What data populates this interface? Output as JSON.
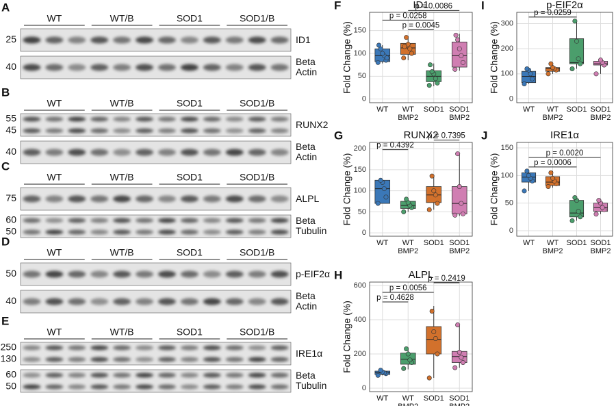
{
  "blots": [
    {
      "letter": "A",
      "groups": [
        "WT",
        "WT/B",
        "SOD1",
        "SOD1/B"
      ],
      "rows": [
        {
          "markers": [
            "25"
          ],
          "label": "ID1"
        },
        {
          "markers": [
            "40"
          ],
          "label": "Beta\nActin"
        }
      ]
    },
    {
      "letter": "B",
      "groups": [
        "WT",
        "WT/B",
        "SOD1",
        "SOD1/B"
      ],
      "rows": [
        {
          "markers": [
            "55",
            "45"
          ],
          "label": "RUNX2"
        },
        {
          "markers": [
            "40"
          ],
          "label": "Beta\nActin"
        }
      ]
    },
    {
      "letter": "C",
      "groups": [
        "WT",
        "WT/B",
        "SOD1",
        "SOD1/B"
      ],
      "rows": [
        {
          "markers": [
            "75"
          ],
          "label": "ALPL"
        },
        {
          "markers": [
            "60",
            "50"
          ],
          "label": "Beta\nTubulin"
        }
      ]
    },
    {
      "letter": "D",
      "groups": [
        "WT",
        "WT/B",
        "SOD1",
        "SOD1/B"
      ],
      "rows": [
        {
          "markers": [
            "50"
          ],
          "label": "p-EIF2α"
        },
        {
          "markers": [
            "40"
          ],
          "label": "Beta\nActin"
        }
      ]
    },
    {
      "letter": "E",
      "groups": [
        "WT",
        "WT/B",
        "SOD1",
        "SOD1/B"
      ],
      "rows": [
        {
          "markers": [
            "250",
            "130"
          ],
          "label": "IRE1α"
        },
        {
          "markers": [
            "60",
            "50"
          ],
          "label": "Beta\nTubulin"
        }
      ]
    }
  ],
  "chart_data": [
    {
      "type": "box",
      "panel": "F",
      "title": "ID1",
      "ylabel": "Fold Change (%)",
      "categories": [
        "WT",
        "WT\nBMP2",
        "SOD1",
        "SOD1\nBMP2"
      ],
      "ylim": [
        -8,
        190
      ],
      "yticks": [
        0,
        50,
        100,
        150
      ],
      "grid": true,
      "boxes": [
        {
          "color": "#3b78b8",
          "min": 78,
          "q1": 82,
          "median": 95,
          "q3": 110,
          "max": 118,
          "points": [
            80,
            85,
            95,
            100,
            110,
            118,
            90
          ]
        },
        {
          "color": "#d2712c",
          "min": 85,
          "q1": 98,
          "median": 112,
          "q3": 122,
          "max": 138,
          "points": [
            90,
            100,
            110,
            120,
            135,
            115
          ]
        },
        {
          "color": "#4b9e6c",
          "min": 28,
          "q1": 38,
          "median": 50,
          "q3": 62,
          "max": 78,
          "points": [
            30,
            35,
            45,
            55,
            60,
            75
          ]
        },
        {
          "color": "#d07eb2",
          "min": 62,
          "q1": 70,
          "median": 95,
          "q3": 125,
          "max": 143,
          "points": [
            65,
            80,
            95,
            110,
            130,
            140
          ]
        }
      ],
      "annotations": [
        {
          "label": "p = 0.0045",
          "from": 1,
          "to": 2
        },
        {
          "label": "p = 0.0258",
          "from": 0,
          "to": 2
        },
        {
          "label": "p = 0.0086",
          "from": 1,
          "to": 3
        }
      ]
    },
    {
      "type": "box",
      "panel": "G",
      "title": "RUNX2",
      "ylabel": "Fold Change (%)",
      "categories": [
        "WT",
        "WT\nBMP2",
        "SOD1",
        "SOD1\nBMP2"
      ],
      "ylim": [
        -8,
        215
      ],
      "yticks": [
        0,
        50,
        100,
        150,
        200
      ],
      "grid": true,
      "boxes": [
        {
          "color": "#3b78b8",
          "min": 70,
          "q1": 70,
          "median": 105,
          "q3": 125,
          "max": 125,
          "points": [
            70,
            85,
            105,
            120,
            125
          ]
        },
        {
          "color": "#4b9e6c",
          "min": 50,
          "q1": 58,
          "median": 65,
          "q3": 75,
          "max": 80,
          "points": [
            50,
            60,
            65,
            72,
            80
          ]
        },
        {
          "color": "#d2712c",
          "min": 55,
          "q1": 72,
          "median": 90,
          "q3": 110,
          "max": 137,
          "points": [
            55,
            70,
            90,
            100,
            135
          ]
        },
        {
          "color": "#d07eb2",
          "min": 40,
          "q1": 45,
          "median": 70,
          "q3": 110,
          "max": 188,
          "points": [
            42,
            45,
            70,
            110,
            188
          ]
        }
      ],
      "annotations": [
        {
          "label": "p = 0.4392",
          "from": 0,
          "to": 1
        },
        {
          "label": "p = 0.7395",
          "from": 2,
          "to": 3
        }
      ]
    },
    {
      "type": "box",
      "panel": "H",
      "title": "ALPL",
      "ylabel": "Fold Change (%)",
      "categories": [
        "WT",
        "WT\nBMP2",
        "SOD1",
        "SOD1\nBMP2"
      ],
      "ylim": [
        -20,
        620
      ],
      "yticks": [
        0,
        200,
        400,
        600
      ],
      "grid": true,
      "boxes": [
        {
          "color": "#3b78b8",
          "min": 75,
          "q1": 80,
          "median": 90,
          "q3": 100,
          "max": 105,
          "points": [
            75,
            85,
            90,
            95,
            105
          ]
        },
        {
          "color": "#4b9e6c",
          "min": 110,
          "q1": 140,
          "median": 170,
          "q3": 205,
          "max": 235,
          "points": [
            115,
            150,
            165,
            200,
            230
          ]
        },
        {
          "color": "#d2712c",
          "min": 60,
          "q1": 200,
          "median": 285,
          "q3": 360,
          "max": 480,
          "points": [
            60,
            200,
            290,
            330,
            450
          ]
        },
        {
          "color": "#d07eb2",
          "min": 120,
          "q1": 150,
          "median": 185,
          "q3": 215,
          "max": 370,
          "points": [
            120,
            150,
            180,
            210,
            370
          ]
        }
      ],
      "annotations": [
        {
          "label": "p = 0.4628",
          "from": 0,
          "to": 1
        },
        {
          "label": "p = 0.0056",
          "from": 0,
          "to": 2
        },
        {
          "label": "p = 0.2419",
          "from": 2,
          "to": 3
        }
      ]
    },
    {
      "type": "box",
      "panel": "I",
      "title": "p-EIF2α",
      "ylabel": "Fold Change (%)",
      "categories": [
        "WT",
        "WT\nBMP2",
        "SOD1",
        "SOD1\nBMP2"
      ],
      "ylim": [
        -15,
        345
      ],
      "yticks": [
        0,
        100,
        200,
        300
      ],
      "grid": true,
      "boxes": [
        {
          "color": "#3b78b8",
          "min": 60,
          "q1": 65,
          "median": 90,
          "q3": 110,
          "max": 120,
          "points": [
            60,
            80,
            100,
            115,
            120
          ]
        },
        {
          "color": "#d2712c",
          "min": 100,
          "q1": 110,
          "median": 120,
          "q3": 125,
          "max": 140,
          "points": [
            100,
            115,
            120,
            125,
            140
          ]
        },
        {
          "color": "#4b9e6c",
          "min": 120,
          "q1": 140,
          "median": 145,
          "q3": 240,
          "max": 310,
          "points": [
            120,
            140,
            160,
            230,
            310
          ]
        },
        {
          "color": "#d07eb2",
          "min": 100,
          "q1": 135,
          "median": 140,
          "q3": 150,
          "max": 155,
          "points": [
            100,
            135,
            145,
            155
          ]
        }
      ],
      "annotations": [
        {
          "label": "p = 0.0259",
          "from": 0,
          "to": 2
        }
      ]
    },
    {
      "type": "box",
      "panel": "J",
      "title": "IRE1α",
      "ylabel": "Fold Change (%)",
      "categories": [
        "WT",
        "WT\nBMP2",
        "SOD1",
        "SOD1\nBMP2"
      ],
      "ylim": [
        -10,
        160
      ],
      "yticks": [
        0,
        50,
        100,
        150
      ],
      "grid": true,
      "boxes": [
        {
          "color": "#3b78b8",
          "min": 72,
          "q1": 88,
          "median": 97,
          "q3": 105,
          "max": 108,
          "points": [
            72,
            90,
            95,
            100,
            108
          ]
        },
        {
          "color": "#d2712c",
          "min": 78,
          "q1": 82,
          "median": 88,
          "q3": 98,
          "max": 108,
          "points": [
            80,
            85,
            90,
            95,
            105
          ]
        },
        {
          "color": "#4b9e6c",
          "min": 18,
          "q1": 25,
          "median": 32,
          "q3": 55,
          "max": 62,
          "points": [
            18,
            25,
            35,
            55,
            60
          ]
        },
        {
          "color": "#d07eb2",
          "min": 30,
          "q1": 35,
          "median": 42,
          "q3": 50,
          "max": 55,
          "points": [
            30,
            38,
            42,
            50,
            55
          ]
        }
      ],
      "annotations": [
        {
          "label": "p = 0.0006",
          "from": 0,
          "to": 2
        },
        {
          "label": "p = 0.0020",
          "from": 0,
          "to": 3
        }
      ]
    }
  ]
}
